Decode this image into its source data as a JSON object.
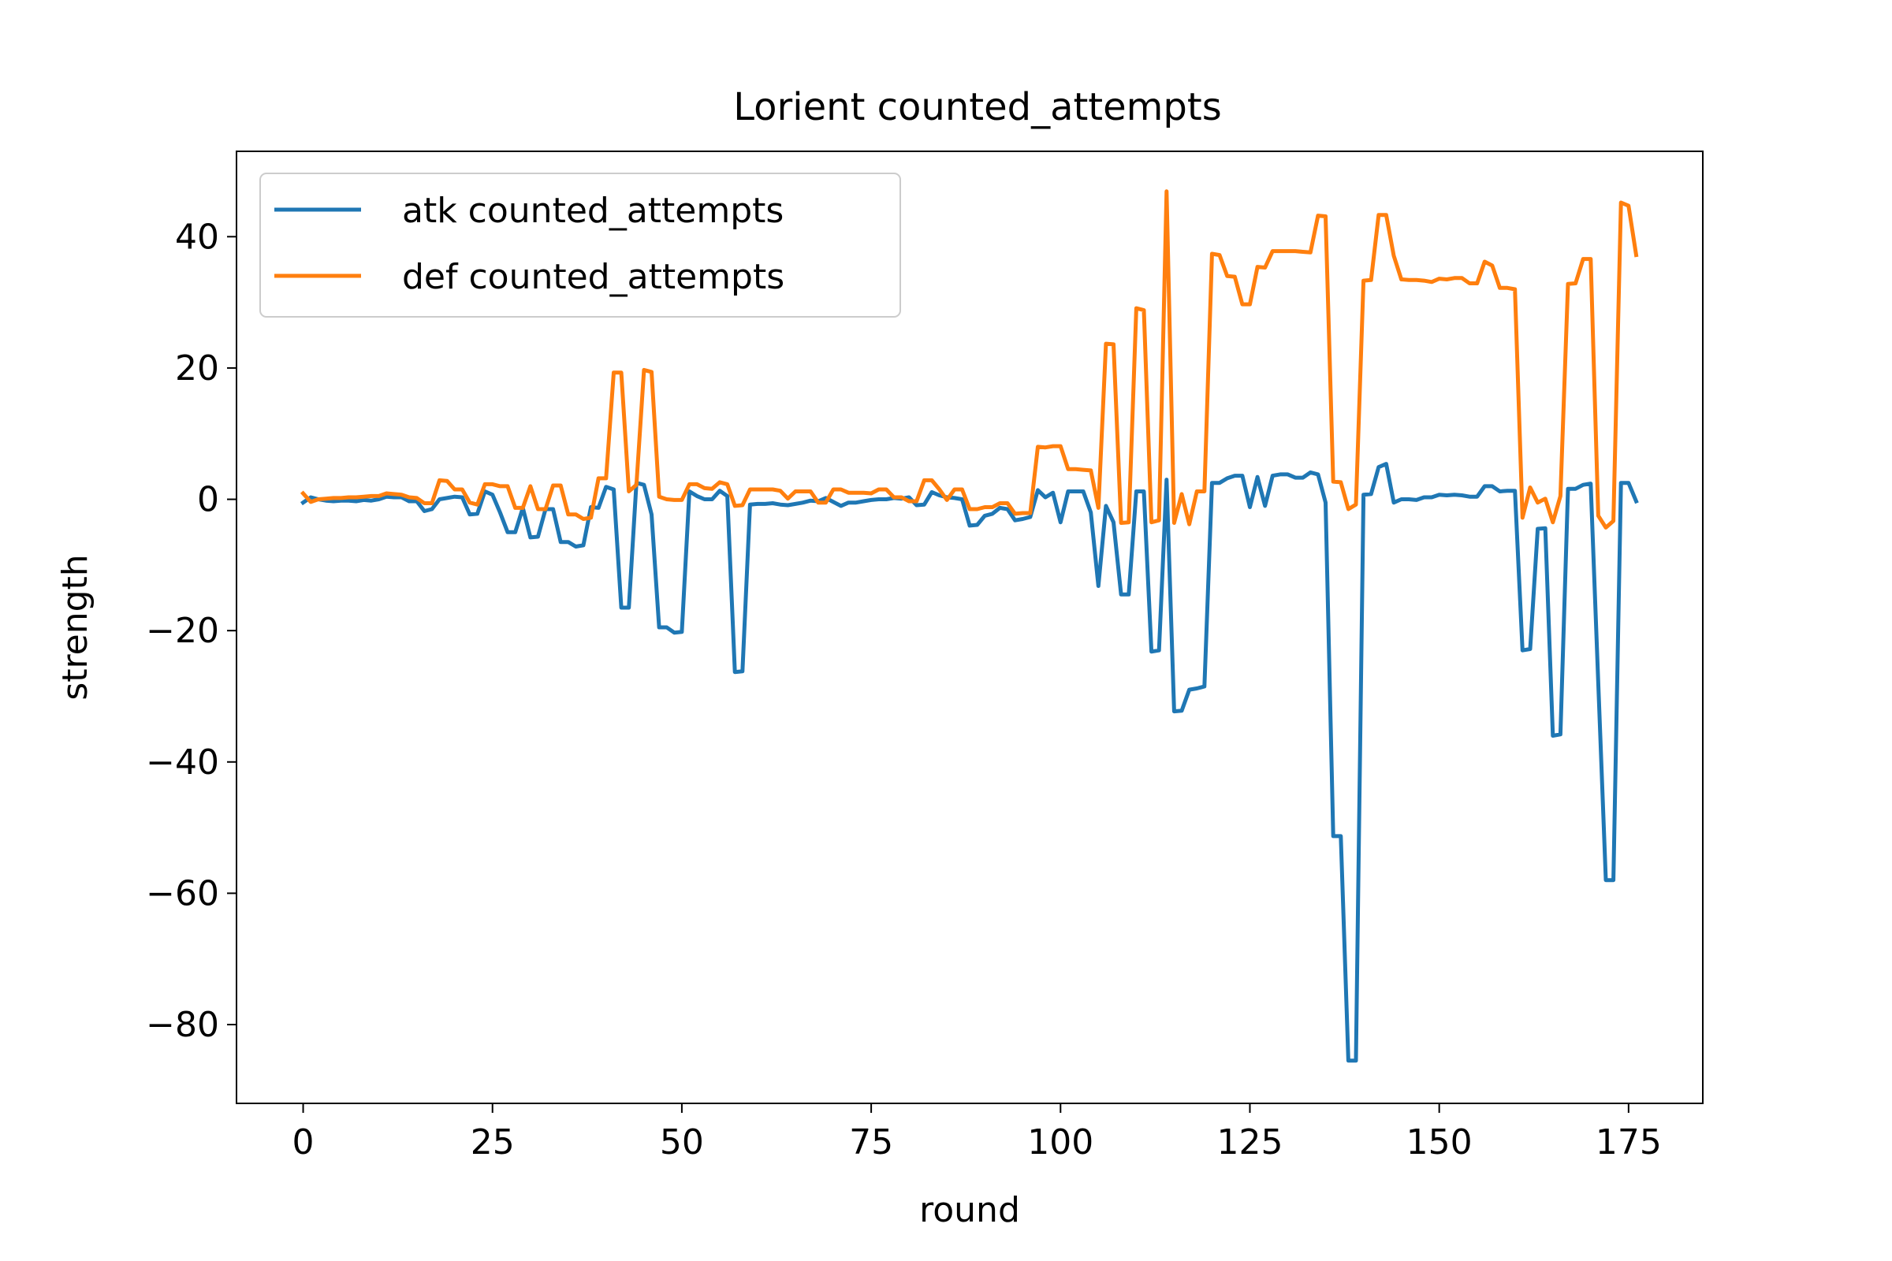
{
  "chart_data": {
    "type": "line",
    "title": "Lorient counted_attempts",
    "xlabel": "round",
    "ylabel": "strength",
    "xlim": [
      -8.8,
      184.8
    ],
    "ylim": [
      -92,
      53
    ],
    "x_ticks": [
      0,
      25,
      50,
      75,
      100,
      125,
      150,
      175
    ],
    "y_ticks": [
      -80,
      -60,
      -40,
      -20,
      0,
      20,
      40
    ],
    "x_tick_labels": [
      "0",
      "25",
      "50",
      "75",
      "100",
      "125",
      "150",
      "175"
    ],
    "y_tick_labels": [
      "−80",
      "−60",
      "−40",
      "−20",
      "0",
      "20",
      "40"
    ],
    "legend_position": "top-left",
    "grid": false,
    "series": [
      {
        "name": "atk counted_attempts",
        "color": "#1f77b4",
        "x": [
          0,
          1,
          2,
          3,
          4,
          5,
          6,
          7,
          8,
          9,
          10,
          11,
          12,
          13,
          14,
          15,
          16,
          17,
          18,
          19,
          20,
          21,
          22,
          23,
          24,
          25,
          26,
          27,
          28,
          29,
          30,
          31,
          32,
          33,
          34,
          35,
          36,
          37,
          38,
          39,
          40,
          41,
          42,
          43,
          44,
          45,
          46,
          47,
          48,
          49,
          50,
          51,
          52,
          53,
          54,
          55,
          56,
          57,
          58,
          59,
          60,
          61,
          62,
          63,
          64,
          65,
          66,
          67,
          68,
          69,
          70,
          71,
          72,
          73,
          74,
          75,
          76,
          77,
          78,
          79,
          80,
          81,
          82,
          83,
          84,
          85,
          86,
          87,
          88,
          89,
          90,
          91,
          92,
          93,
          94,
          95,
          96,
          97,
          98,
          99,
          100,
          101,
          102,
          103,
          104,
          105,
          106,
          107,
          108,
          109,
          110,
          111,
          112,
          113,
          114,
          115,
          116,
          117,
          118,
          119,
          120,
          121,
          122,
          123,
          124,
          125,
          126,
          127,
          128,
          129,
          130,
          131,
          132,
          133,
          134,
          135,
          136,
          137,
          138,
          139,
          140,
          141,
          142,
          143,
          144,
          145,
          146,
          147,
          148,
          149,
          150,
          151,
          152,
          153,
          154,
          155,
          156,
          157,
          158,
          159,
          160,
          161,
          162,
          163,
          164,
          165,
          166,
          167,
          168,
          169,
          170,
          171,
          172,
          173,
          174,
          175,
          176
        ],
        "values": [
          -0.5,
          0.3,
          0,
          -0.2,
          -0.3,
          -0.2,
          -0.2,
          -0.3,
          -0.1,
          -0.2,
          0,
          0.4,
          0.3,
          0.3,
          -0.3,
          -0.3,
          -1.8,
          -1.5,
          0,
          0.2,
          0.4,
          0.3,
          -2.3,
          -2.2,
          1.2,
          0.7,
          -2,
          -5,
          -5,
          -1.3,
          -5.8,
          -5.7,
          -1.5,
          -1.5,
          -6.5,
          -6.5,
          -7.2,
          -7,
          -1.2,
          -1.3,
          1.9,
          1.5,
          -16.5,
          -16.5,
          2.5,
          2.2,
          -2.3,
          -19.5,
          -19.5,
          -20.3,
          -20.2,
          1.2,
          0.5,
          0,
          0,
          1.3,
          0.5,
          -26.3,
          -26.2,
          -0.8,
          -0.7,
          -0.7,
          -0.6,
          -0.8,
          -0.9,
          -0.7,
          -0.5,
          -0.2,
          -0.3,
          0.2,
          -0.4,
          -1,
          -0.5,
          -0.5,
          -0.3,
          -0.1,
          0,
          0,
          0.2,
          0.1,
          0.3,
          -0.9,
          -0.8,
          1.1,
          0.6,
          0.3,
          0.2,
          0,
          -4,
          -3.9,
          -2.5,
          -2.2,
          -1.3,
          -1.5,
          -3.2,
          -3,
          -2.7,
          1.4,
          0.3,
          1,
          -3.5,
          1.2,
          1.2,
          1.2,
          -2,
          -13.2,
          -1,
          -3.5,
          -14.5,
          -14.5,
          1.2,
          1.2,
          -23.2,
          -23,
          3,
          -32.3,
          -32.2,
          -29,
          -28.8,
          -28.5,
          2.5,
          2.5,
          3.2,
          3.6,
          3.6,
          -1.2,
          3.4,
          -1,
          3.6,
          3.8,
          3.8,
          3.3,
          3.3,
          4.1,
          3.8,
          -0.5,
          -51.3,
          -51.3,
          -85.5,
          -85.5,
          0.7,
          0.8,
          4.9,
          5.4,
          -0.5,
          0,
          0,
          -0.1,
          0.3,
          0.3,
          0.7,
          0.6,
          0.7,
          0.6,
          0.4,
          0.4,
          2,
          2,
          1.2,
          1.3,
          1.3,
          -23,
          -22.8,
          -4.5,
          -4.4,
          -36,
          -35.8,
          1.6,
          1.6,
          2.2,
          2.4,
          -28,
          -58,
          -58,
          2.5,
          2.5,
          -0.3
        ]
      },
      {
        "name": "def counted_attempts",
        "color": "#ff7f0e",
        "x": [
          0,
          1,
          2,
          3,
          4,
          5,
          6,
          7,
          8,
          9,
          10,
          11,
          12,
          13,
          14,
          15,
          16,
          17,
          18,
          19,
          20,
          21,
          22,
          23,
          24,
          25,
          26,
          27,
          28,
          29,
          30,
          31,
          32,
          33,
          34,
          35,
          36,
          37,
          38,
          39,
          40,
          41,
          42,
          43,
          44,
          45,
          46,
          47,
          48,
          49,
          50,
          51,
          52,
          53,
          54,
          55,
          56,
          57,
          58,
          59,
          60,
          61,
          62,
          63,
          64,
          65,
          66,
          67,
          68,
          69,
          70,
          71,
          72,
          73,
          74,
          75,
          76,
          77,
          78,
          79,
          80,
          81,
          82,
          83,
          84,
          85,
          86,
          87,
          88,
          89,
          90,
          91,
          92,
          93,
          94,
          95,
          96,
          97,
          98,
          99,
          100,
          101,
          102,
          103,
          104,
          105,
          106,
          107,
          108,
          109,
          110,
          111,
          112,
          113,
          114,
          115,
          116,
          117,
          118,
          119,
          120,
          121,
          122,
          123,
          124,
          125,
          126,
          127,
          128,
          129,
          130,
          131,
          132,
          133,
          134,
          135,
          136,
          137,
          138,
          139,
          140,
          141,
          142,
          143,
          144,
          145,
          146,
          147,
          148,
          149,
          150,
          151,
          152,
          153,
          154,
          155,
          156,
          157,
          158,
          159,
          160,
          161,
          162,
          163,
          164,
          165,
          166,
          167,
          168,
          169,
          170,
          171,
          172,
          173,
          174,
          175,
          176
        ],
        "values": [
          0.9,
          -0.4,
          0,
          0.1,
          0.2,
          0.2,
          0.3,
          0.3,
          0.4,
          0.5,
          0.5,
          0.9,
          0.8,
          0.7,
          0.3,
          0.2,
          -0.6,
          -0.6,
          2.9,
          2.8,
          1.5,
          1.5,
          -0.5,
          -0.8,
          2.3,
          2.3,
          2,
          2,
          -1.3,
          -1.3,
          2,
          -1.5,
          -1.5,
          2.1,
          2.1,
          -2.3,
          -2.3,
          -3,
          -2.8,
          3.2,
          3.2,
          19.3,
          19.3,
          1.2,
          2.2,
          19.7,
          19.4,
          0.4,
          0,
          -0.1,
          -0.1,
          2.3,
          2.3,
          1.7,
          1.6,
          2.6,
          2.3,
          -1,
          -0.9,
          1.5,
          1.5,
          1.5,
          1.5,
          1.3,
          0.1,
          1.2,
          1.2,
          1.2,
          -0.5,
          -0.5,
          1.5,
          1.5,
          1,
          1,
          1,
          0.9,
          1.5,
          1.5,
          0.3,
          0.3,
          -0.3,
          -0.3,
          2.9,
          2.9,
          1.5,
          -0.1,
          1.5,
          1.5,
          -1.5,
          -1.5,
          -1.2,
          -1.2,
          -0.6,
          -0.6,
          -2.2,
          -2.1,
          -2.1,
          8,
          7.9,
          8.1,
          8.1,
          4.6,
          4.6,
          4.5,
          4.4,
          -1.3,
          23.7,
          23.6,
          -3.6,
          -3.5,
          29.1,
          28.8,
          -3.5,
          -3.2,
          46.9,
          -3.6,
          0.8,
          -3.8,
          1.2,
          1.2,
          37.4,
          37.2,
          34,
          33.9,
          29.7,
          29.7,
          35.4,
          35.3,
          37.8,
          37.8,
          37.8,
          37.8,
          37.7,
          37.6,
          43.2,
          43.1,
          2.7,
          2.6,
          -1.5,
          -0.8,
          33.3,
          33.4,
          43.3,
          43.3,
          37.1,
          33.5,
          33.4,
          33.4,
          33.3,
          33.1,
          33.6,
          33.5,
          33.7,
          33.7,
          32.9,
          32.9,
          36.2,
          35.6,
          32.2,
          32.2,
          32,
          -2.8,
          1.8,
          -0.5,
          0.1,
          -3.5,
          0.5,
          32.8,
          32.9,
          36.6,
          36.6,
          -2.5,
          -4.3,
          -3.3,
          45.2,
          44.7,
          37.2
        ]
      }
    ]
  }
}
